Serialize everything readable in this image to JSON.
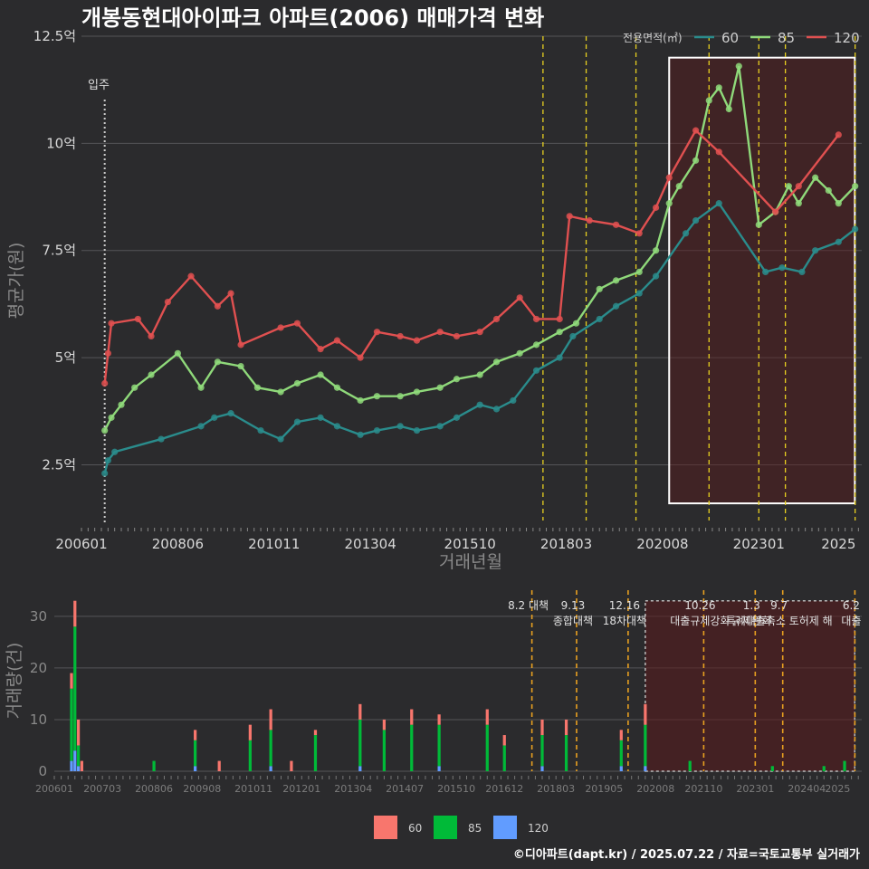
{
  "chart_data": [
    {
      "type": "line",
      "title": "개봉동현대아이파크 아파트(2006) 매매가격 변화",
      "xlabel": "거래년월",
      "ylabel": "평균가(원)",
      "ylim": [
        1.2,
        12.5
      ],
      "yticks": [
        2.5,
        5,
        7.5,
        10,
        12.5
      ],
      "ytick_labels": [
        "2.5억",
        "5억",
        "7.5억",
        "10억",
        "12.5억"
      ],
      "xticks": [
        "200601",
        "200806",
        "201011",
        "201304",
        "201510",
        "201803",
        "202008",
        "202301",
        "2025"
      ],
      "xrange": [
        "2006-01",
        "2025-07"
      ],
      "legend_title": "전용면적(㎡)",
      "legend": [
        "60",
        "85",
        "120"
      ],
      "colors": {
        "60": "#2a8c8c",
        "85": "#8fd97a",
        "120": "#e05050"
      },
      "move_in_label": "입주",
      "series": [
        {
          "name": "60",
          "points": [
            [
              "2006-08",
              2.3
            ],
            [
              "2006-09",
              2.6
            ],
            [
              "2006-11",
              2.8
            ],
            [
              "2008-01",
              3.1
            ],
            [
              "2009-01",
              3.4
            ],
            [
              "2009-05",
              3.6
            ],
            [
              "2009-10",
              3.7
            ],
            [
              "2010-07",
              3.3
            ],
            [
              "2011-01",
              3.1
            ],
            [
              "2011-06",
              3.5
            ],
            [
              "2012-01",
              3.6
            ],
            [
              "2012-06",
              3.4
            ],
            [
              "2013-01",
              3.2
            ],
            [
              "2013-06",
              3.3
            ],
            [
              "2014-01",
              3.4
            ],
            [
              "2014-06",
              3.3
            ],
            [
              "2015-01",
              3.4
            ],
            [
              "2015-06",
              3.6
            ],
            [
              "2016-01",
              3.9
            ],
            [
              "2016-06",
              3.8
            ],
            [
              "2016-11",
              4.0
            ],
            [
              "2017-06",
              4.7
            ],
            [
              "2018-01",
              5.0
            ],
            [
              "2018-05",
              5.5
            ],
            [
              "2019-01",
              5.9
            ],
            [
              "2019-06",
              6.2
            ],
            [
              "2020-01",
              6.5
            ],
            [
              "2020-06",
              6.9
            ],
            [
              "2021-03",
              7.9
            ],
            [
              "2021-06",
              8.2
            ],
            [
              "2022-01",
              8.6
            ],
            [
              "2023-03",
              7.0
            ],
            [
              "2023-08",
              7.1
            ],
            [
              "2024-02",
              7.0
            ],
            [
              "2024-06",
              7.5
            ],
            [
              "2025-01",
              7.7
            ],
            [
              "2025-06",
              8.0
            ]
          ]
        },
        {
          "name": "85",
          "points": [
            [
              "2006-08",
              3.3
            ],
            [
              "2006-10",
              3.6
            ],
            [
              "2007-01",
              3.9
            ],
            [
              "2007-05",
              4.3
            ],
            [
              "2007-10",
              4.6
            ],
            [
              "2008-06",
              5.1
            ],
            [
              "2009-01",
              4.3
            ],
            [
              "2009-06",
              4.9
            ],
            [
              "2010-01",
              4.8
            ],
            [
              "2010-06",
              4.3
            ],
            [
              "2011-01",
              4.2
            ],
            [
              "2011-06",
              4.4
            ],
            [
              "2012-01",
              4.6
            ],
            [
              "2012-06",
              4.3
            ],
            [
              "2013-01",
              4.0
            ],
            [
              "2013-06",
              4.1
            ],
            [
              "2014-01",
              4.1
            ],
            [
              "2014-06",
              4.2
            ],
            [
              "2015-01",
              4.3
            ],
            [
              "2015-06",
              4.5
            ],
            [
              "2016-01",
              4.6
            ],
            [
              "2016-06",
              4.9
            ],
            [
              "2017-01",
              5.1
            ],
            [
              "2017-06",
              5.3
            ],
            [
              "2018-01",
              5.6
            ],
            [
              "2018-06",
              5.8
            ],
            [
              "2019-01",
              6.6
            ],
            [
              "2019-06",
              6.8
            ],
            [
              "2020-01",
              7.0
            ],
            [
              "2020-06",
              7.5
            ],
            [
              "2020-10",
              8.6
            ],
            [
              "2021-01",
              9.0
            ],
            [
              "2021-06",
              9.6
            ],
            [
              "2021-10",
              11.0
            ],
            [
              "2022-01",
              11.3
            ],
            [
              "2022-04",
              10.8
            ],
            [
              "2022-07",
              11.8
            ],
            [
              "2023-01",
              8.1
            ],
            [
              "2023-06",
              8.4
            ],
            [
              "2023-10",
              9.0
            ],
            [
              "2024-01",
              8.6
            ],
            [
              "2024-06",
              9.2
            ],
            [
              "2024-10",
              8.9
            ],
            [
              "2025-01",
              8.6
            ],
            [
              "2025-06",
              9.0
            ]
          ]
        },
        {
          "name": "120",
          "points": [
            [
              "2006-08",
              4.4
            ],
            [
              "2006-09",
              5.1
            ],
            [
              "2006-10",
              5.8
            ],
            [
              "2007-06",
              5.9
            ],
            [
              "2007-10",
              5.5
            ],
            [
              "2008-03",
              6.3
            ],
            [
              "2008-10",
              6.9
            ],
            [
              "2009-06",
              6.2
            ],
            [
              "2009-10",
              6.5
            ],
            [
              "2010-01",
              5.3
            ],
            [
              "2011-01",
              5.7
            ],
            [
              "2011-06",
              5.8
            ],
            [
              "2012-01",
              5.2
            ],
            [
              "2012-06",
              5.4
            ],
            [
              "2013-01",
              5.0
            ],
            [
              "2013-06",
              5.6
            ],
            [
              "2014-01",
              5.5
            ],
            [
              "2014-06",
              5.4
            ],
            [
              "2015-01",
              5.6
            ],
            [
              "2015-06",
              5.5
            ],
            [
              "2016-01",
              5.6
            ],
            [
              "2016-06",
              5.9
            ],
            [
              "2017-01",
              6.4
            ],
            [
              "2017-06",
              5.9
            ],
            [
              "2018-01",
              5.9
            ],
            [
              "2018-04",
              8.3
            ],
            [
              "2018-10",
              8.2
            ],
            [
              "2019-06",
              8.1
            ],
            [
              "2020-01",
              7.9
            ],
            [
              "2020-06",
              8.5
            ],
            [
              "2020-10",
              9.2
            ],
            [
              "2021-06",
              10.3
            ],
            [
              "2022-01",
              9.8
            ],
            [
              "2023-06",
              8.4
            ],
            [
              "2024-01",
              9.0
            ],
            [
              "2025-01",
              10.2
            ]
          ]
        }
      ]
    },
    {
      "type": "bar",
      "stacked": true,
      "ylabel": "거래량(건)",
      "ylim": [
        0,
        34
      ],
      "yticks": [
        0,
        10,
        20,
        30
      ],
      "ytick_labels": [
        "0",
        "10",
        "20",
        "30"
      ],
      "xticks": [
        "200601",
        "200703",
        "200806",
        "200908",
        "201011",
        "201201",
        "201304",
        "201407",
        "201510",
        "201612",
        "201803",
        "201905",
        "202008",
        "202110",
        "202301",
        "202404",
        "2025"
      ],
      "legend": [
        "60",
        "85",
        "120"
      ],
      "colors": {
        "60": "#f8766d",
        "85": "#00ba38",
        "120": "#619cff"
      },
      "annotations": [
        {
          "date": "2017-08",
          "label": "8.2 대책"
        },
        {
          "date": "2018-09",
          "label": "9.13"
        },
        {
          "date": "2018-09",
          "label": "종합대책"
        },
        {
          "date": "2019-12",
          "label": "12.16"
        },
        {
          "date": "2019-12",
          "label": "18차대책"
        },
        {
          "date": "2021-10",
          "label": "10.26"
        },
        {
          "date": "2021-10",
          "label": "대출규제강화"
        },
        {
          "date": "2023-01",
          "label": "1.3"
        },
        {
          "date": "2023-01",
          "label": "규제완화"
        },
        {
          "date": "2023-09",
          "label": "9.7"
        },
        {
          "date": "2023-09",
          "label": "특례대출축소 토허제 해"
        },
        {
          "date": "2025-06",
          "label": "6.2"
        },
        {
          "date": "2025-06",
          "label": "대출"
        }
      ],
      "series": [
        {
          "name": "60",
          "values_by_month": {
            "2006-06": 3,
            "2006-07": 5,
            "2006-08": 5,
            "2006-09": 2,
            "2009-06": 2,
            "2010-01": 2,
            "2010-10": 3,
            "2011-04": 4,
            "2011-10": 2,
            "2012-05": 1,
            "2013-06": 3,
            "2014-01": 2,
            "2014-09": 3,
            "2015-05": 2,
            "2016-07": 3,
            "2016-12": 2,
            "2017-11": 3,
            "2018-06": 3,
            "2019-10": 2,
            "2020-05": 4
          }
        },
        {
          "name": "85",
          "values_by_month": {
            "2006-06": 14,
            "2006-07": 24,
            "2006-08": 4,
            "2008-06": 2,
            "2009-06": 5,
            "2010-10": 6,
            "2011-04": 7,
            "2012-05": 7,
            "2013-06": 9,
            "2014-01": 8,
            "2014-09": 9,
            "2015-05": 8,
            "2016-07": 9,
            "2016-12": 5,
            "2017-11": 6,
            "2018-06": 7,
            "2019-10": 5,
            "2020-05": 8,
            "2021-06": 2,
            "2023-06": 1,
            "2024-09": 1,
            "2025-03": 2
          }
        },
        {
          "name": "120",
          "values_by_month": {
            "2006-06": 2,
            "2006-07": 4,
            "2006-08": 1,
            "2009-06": 1,
            "2011-04": 1,
            "2013-06": 1,
            "2015-05": 1,
            "2017-11": 1,
            "2019-10": 1,
            "2020-05": 1
          }
        }
      ]
    }
  ],
  "footer": "©디아파트(dapt.kr) / 2025.07.22 / 자료=국토교통부 실거래가"
}
